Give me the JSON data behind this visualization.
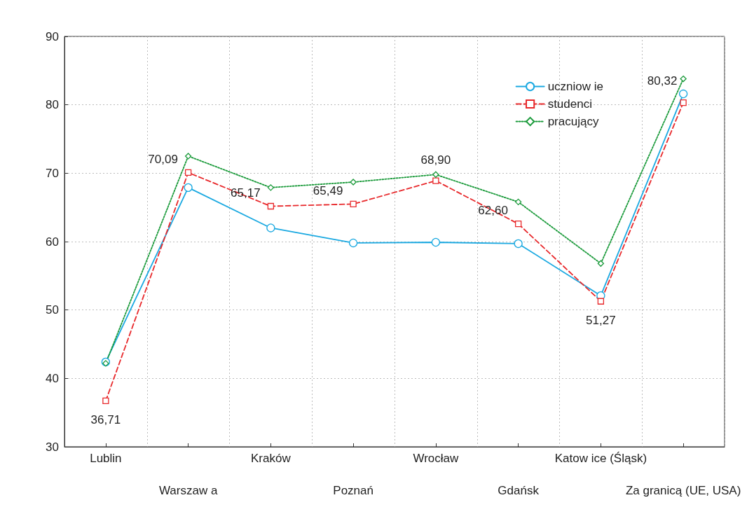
{
  "chart_data": {
    "type": "line",
    "categories": [
      "Lublin",
      "Warszaw a",
      "Kraków",
      "Poznań",
      "Wrocław",
      "Gdańsk",
      "Katow ice (Śląsk)",
      "Za granicą (UE, USA)"
    ],
    "series": [
      {
        "name": "uczniow ie",
        "color": "#1ba9e1",
        "marker": "circle",
        "line_style": "solid",
        "values": [
          42.4,
          67.9,
          62.0,
          59.8,
          59.9,
          59.7,
          52.1,
          81.6
        ]
      },
      {
        "name": "studenci",
        "color": "#e8282b",
        "marker": "square",
        "line_style": "dashed",
        "values": [
          36.71,
          70.09,
          65.17,
          65.49,
          68.9,
          62.6,
          51.27,
          80.32
        ],
        "value_labels": [
          "36,71",
          "70,09",
          "65,17",
          "65,49",
          "68,90",
          "62,60",
          "51,27",
          "80,32"
        ]
      },
      {
        "name": "pracujący",
        "color": "#1a9a3a",
        "marker": "diamond",
        "line_style": "dotted",
        "values": [
          42.2,
          72.5,
          67.9,
          68.7,
          69.8,
          65.8,
          56.8,
          83.8
        ]
      }
    ],
    "ylim": [
      30,
      90
    ],
    "yticks": [
      30,
      40,
      50,
      60,
      70,
      80,
      90
    ],
    "grid": true,
    "legend": "top right"
  }
}
